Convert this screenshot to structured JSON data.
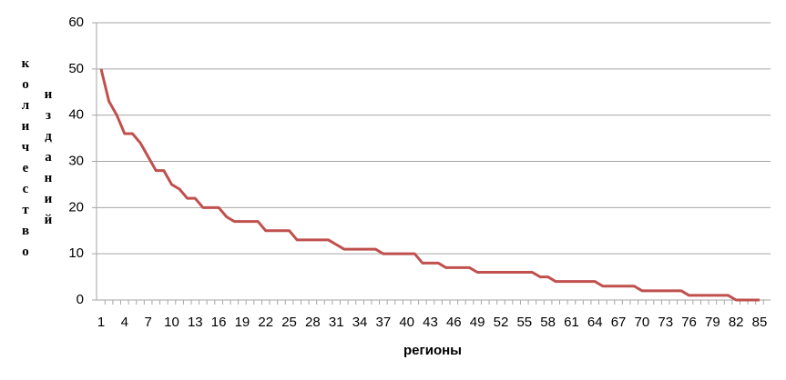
{
  "chart_data": {
    "type": "line",
    "x_label": "регионы",
    "y_label": [
      "количество",
      "изданий"
    ],
    "x": [
      1,
      2,
      3,
      4,
      5,
      6,
      7,
      8,
      9,
      10,
      11,
      12,
      13,
      14,
      15,
      16,
      17,
      18,
      19,
      20,
      21,
      22,
      23,
      24,
      25,
      26,
      27,
      28,
      29,
      30,
      31,
      32,
      33,
      34,
      35,
      36,
      37,
      38,
      39,
      40,
      41,
      42,
      43,
      44,
      45,
      46,
      47,
      48,
      49,
      50,
      51,
      52,
      53,
      54,
      55,
      56,
      57,
      58,
      59,
      60,
      61,
      62,
      63,
      64,
      65,
      66,
      67,
      68,
      69,
      70,
      71,
      72,
      73,
      74,
      75,
      76,
      77,
      78,
      79,
      80,
      81,
      82,
      83,
      84,
      85
    ],
    "series": [
      {
        "color": "#c0504d",
        "values": [
          50,
          43,
          40,
          36,
          36,
          34,
          31,
          28,
          28,
          25,
          24,
          22,
          22,
          20,
          20,
          20,
          18,
          17,
          17,
          17,
          17,
          15,
          15,
          15,
          15,
          13,
          13,
          13,
          13,
          13,
          12,
          11,
          11,
          11,
          11,
          11,
          10,
          10,
          10,
          10,
          10,
          8,
          8,
          8,
          7,
          7,
          7,
          7,
          6,
          6,
          6,
          6,
          6,
          6,
          6,
          6,
          5,
          5,
          4,
          4,
          4,
          4,
          4,
          4,
          3,
          3,
          3,
          3,
          3,
          2,
          2,
          2,
          2,
          2,
          2,
          1,
          1,
          1,
          1,
          1,
          1,
          0,
          0,
          0,
          0
        ]
      }
    ],
    "xlim": [
      1,
      85
    ],
    "xticks": [
      1,
      4,
      7,
      10,
      13,
      16,
      19,
      22,
      25,
      28,
      31,
      34,
      37,
      40,
      43,
      46,
      49,
      52,
      55,
      58,
      61,
      64,
      67,
      70,
      73,
      76,
      79,
      82,
      85
    ],
    "ylim": [
      0,
      60
    ],
    "yticks": [
      0,
      10,
      20,
      30,
      40,
      50,
      60
    ],
    "grid": true
  }
}
